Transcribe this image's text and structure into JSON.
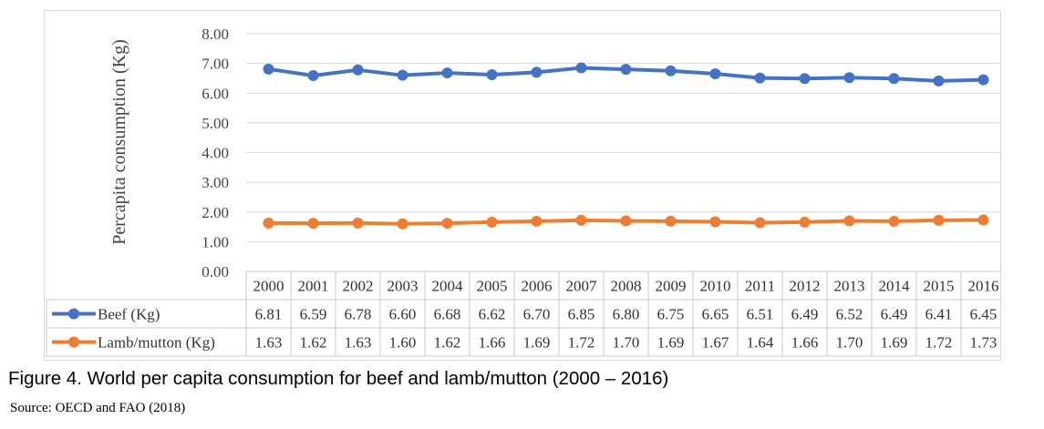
{
  "chart_data": {
    "type": "line",
    "ylabel": "Percapita consumption (Kg)",
    "ylim": [
      0,
      8
    ],
    "yticks": [
      "0.00",
      "1.00",
      "2.00",
      "3.00",
      "4.00",
      "5.00",
      "6.00",
      "7.00",
      "8.00"
    ],
    "grid": true,
    "legend": "data-table",
    "categories": [
      "2000",
      "2001",
      "2002",
      "2003",
      "2004",
      "2005",
      "2006",
      "2007",
      "2008",
      "2009",
      "2010",
      "2011",
      "2012",
      "2013",
      "2014",
      "2015",
      "2016"
    ],
    "series": [
      {
        "name": "Beef (Kg)",
        "color": "#4472C4",
        "values": [
          6.81,
          6.59,
          6.78,
          6.6,
          6.68,
          6.62,
          6.7,
          6.85,
          6.8,
          6.75,
          6.65,
          6.51,
          6.49,
          6.52,
          6.49,
          6.41,
          6.45
        ],
        "labels": [
          "6.81",
          "6.59",
          "6.78",
          "6.60",
          "6.68",
          "6.62",
          "6.70",
          "6.85",
          "6.80",
          "6.75",
          "6.65",
          "6.51",
          "6.49",
          "6.52",
          "6.49",
          "6.41",
          "6.45"
        ]
      },
      {
        "name": "Lamb/mutton (Kg)",
        "color": "#ED7D31",
        "values": [
          1.63,
          1.62,
          1.63,
          1.6,
          1.62,
          1.66,
          1.69,
          1.72,
          1.7,
          1.69,
          1.67,
          1.64,
          1.66,
          1.7,
          1.69,
          1.72,
          1.73
        ],
        "labels": [
          "1.63",
          "1.62",
          "1.63",
          "1.60",
          "1.62",
          "1.66",
          "1.69",
          "1.72",
          "1.70",
          "1.69",
          "1.67",
          "1.64",
          "1.66",
          "1.70",
          "1.69",
          "1.72",
          "1.73"
        ]
      }
    ]
  },
  "caption": "Figure 4. World per capita consumption for beef and lamb/mutton (2000 – 2016)",
  "source": "Source: OECD and FAO (2018)"
}
